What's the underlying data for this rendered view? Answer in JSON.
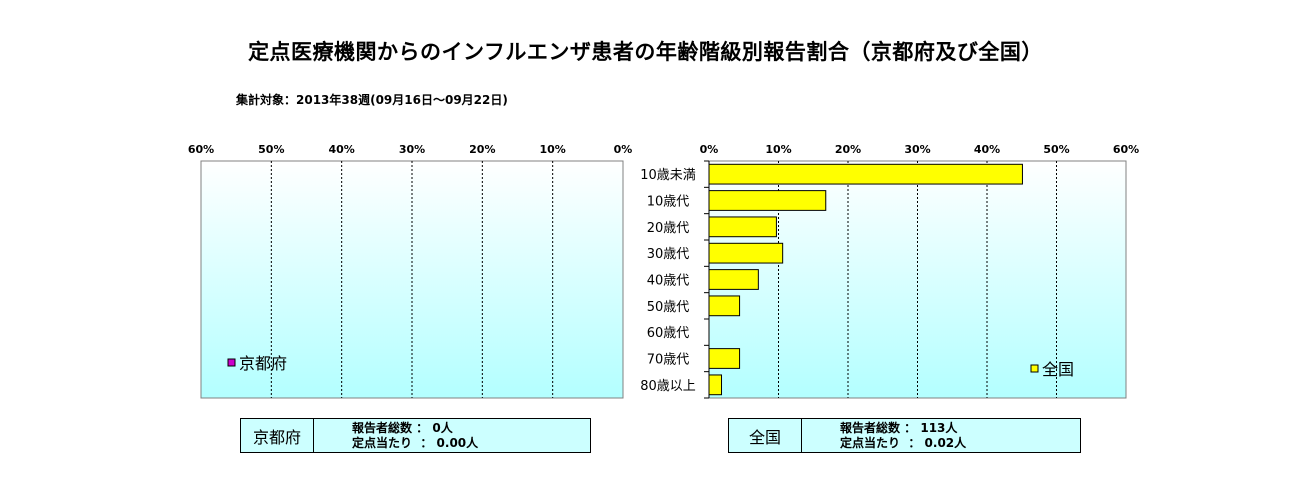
{
  "title": "定点医療機関からのインフルエンザ患者の年齢階級別報告割合（京都府及び全国）",
  "subtitle": "集計対象：2013年38週(09月16日～09月22日)",
  "colors": {
    "plot_top": "#ffffff",
    "plot_bottom": "#b3ffff",
    "kyoto_bar": "#cc00cc",
    "national_bar": "#ffff00",
    "info_box_bg": "#ccffff"
  },
  "chart_data": [
    {
      "type": "bar",
      "orientation": "horizontal",
      "x_direction": "reversed",
      "region": "京都府",
      "categories": [
        "10歳未満",
        "10歳代",
        "20歳代",
        "30歳代",
        "40歳代",
        "50歳代",
        "60歳代",
        "70歳代",
        "80歳以上"
      ],
      "series": [
        {
          "name": "京都府",
          "values": [
            0,
            0,
            0,
            0,
            0,
            0,
            0,
            0,
            0
          ]
        }
      ],
      "xlim": [
        0,
        60
      ],
      "ticks": [
        "60%",
        "50%",
        "40%",
        "30%",
        "20%",
        "10%",
        "0%"
      ],
      "grid": true,
      "legend": "bottom-left"
    },
    {
      "type": "bar",
      "orientation": "horizontal",
      "region": "全国",
      "categories": [
        "10歳未満",
        "10歳代",
        "20歳代",
        "30歳代",
        "40歳代",
        "50歳代",
        "60歳代",
        "70歳代",
        "80歳以上"
      ],
      "series": [
        {
          "name": "全国",
          "values": [
            45.1,
            16.8,
            9.7,
            10.6,
            7.1,
            4.4,
            0,
            4.4,
            1.8
          ]
        }
      ],
      "xlim": [
        0,
        60
      ],
      "ticks": [
        "0%",
        "10%",
        "20%",
        "30%",
        "40%",
        "50%",
        "60%"
      ],
      "grid": true,
      "legend": "bottom-right"
    }
  ],
  "info": {
    "kyoto": {
      "region": "京都府",
      "line1": "報告者総数 ： 0人",
      "line2": "定点当たり  ： 0.00人"
    },
    "national": {
      "region": "全国",
      "line1": "報告者総数 ： 113人",
      "line2": "定点当たり  ： 0.02人"
    }
  }
}
